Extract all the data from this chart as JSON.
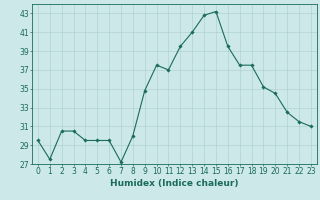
{
  "x": [
    0,
    1,
    2,
    3,
    4,
    5,
    6,
    7,
    8,
    9,
    10,
    11,
    12,
    13,
    14,
    15,
    16,
    17,
    18,
    19,
    20,
    21,
    22,
    23
  ],
  "y": [
    29.5,
    27.5,
    30.5,
    30.5,
    29.5,
    29.5,
    29.5,
    27.2,
    30.0,
    34.8,
    37.5,
    37.0,
    39.5,
    41.0,
    42.8,
    43.2,
    39.5,
    37.5,
    37.5,
    35.2,
    34.5,
    32.5,
    31.5,
    31.0
  ],
  "line_color": "#1a6b5a",
  "marker": "D",
  "marker_size": 1.8,
  "bg_color": "#cce8e8",
  "grid_color": "#aacccc",
  "xlabel": "Humidex (Indice chaleur)",
  "xlim": [
    -0.5,
    23.5
  ],
  "ylim": [
    27,
    44
  ],
  "yticks": [
    27,
    29,
    31,
    33,
    35,
    37,
    39,
    41,
    43
  ],
  "xticks": [
    0,
    1,
    2,
    3,
    4,
    5,
    6,
    7,
    8,
    9,
    10,
    11,
    12,
    13,
    14,
    15,
    16,
    17,
    18,
    19,
    20,
    21,
    22,
    23
  ],
  "tick_color": "#1a6b5a",
  "label_fontsize": 6.5,
  "tick_fontsize": 5.5
}
